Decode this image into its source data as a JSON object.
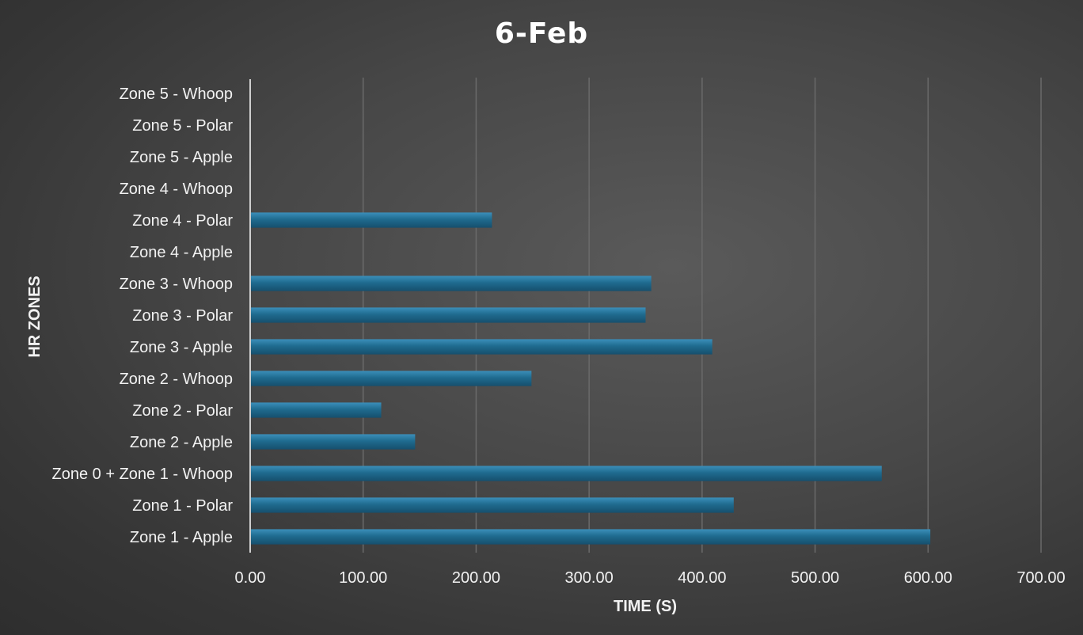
{
  "chart_data": {
    "type": "bar",
    "orientation": "horizontal",
    "title": "6-Feb",
    "xlabel": "TIME (S)",
    "ylabel": "HR ZONES",
    "categories": [
      "Zone 1 - Apple",
      "Zone 1 - Polar",
      "Zone 0 + Zone 1 - Whoop",
      "Zone 2 - Apple",
      "Zone 2 - Polar",
      "Zone 2 - Whoop",
      "Zone 3 - Apple",
      "Zone 3 - Polar",
      "Zone 3 - Whoop",
      "Zone 4 - Apple",
      "Zone 4 - Polar",
      "Zone 4 - Whoop",
      "Zone 5 - Apple",
      "Zone 5 - Polar",
      "Zone 5 - Whoop"
    ],
    "values": [
      602,
      428,
      559,
      146,
      116,
      249,
      409,
      350,
      355,
      0,
      214,
      0,
      0,
      0,
      0
    ],
    "xlim": [
      0,
      700
    ],
    "xticks": [
      "0.00",
      "100.00",
      "200.00",
      "300.00",
      "400.00",
      "500.00",
      "600.00",
      "700.00"
    ],
    "grid": true,
    "legend": "none",
    "bar_color": "#1f6b8f",
    "background_color": "#474747",
    "gridline_color": "#6a6a6a",
    "text_color": "#f2f2f2"
  }
}
